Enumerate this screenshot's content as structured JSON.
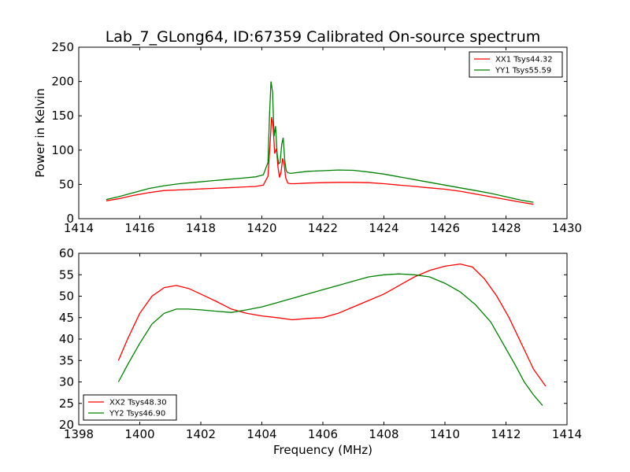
{
  "figure": {
    "title": "Lab_7_GLong64, ID:67359 Calibrated On-source spectrum"
  },
  "chart_data": [
    {
      "type": "line",
      "title": "Lab_7_GLong64, ID:67359 Calibrated On-source spectrum",
      "xlabel": "",
      "ylabel": "Power in Kelvin",
      "xlim": [
        1414,
        1430
      ],
      "ylim": [
        0,
        250
      ],
      "xticks": [
        1414,
        1416,
        1418,
        1420,
        1422,
        1424,
        1426,
        1428,
        1430
      ],
      "yticks": [
        0,
        50,
        100,
        150,
        200,
        250
      ],
      "grid": false,
      "legend_position": "top-right",
      "series": [
        {
          "name": "XX1 Tsys44.32",
          "color": "#ff0000",
          "x": [
            1414.9,
            1415.3,
            1415.8,
            1416.3,
            1416.8,
            1417.3,
            1417.8,
            1418.3,
            1418.8,
            1419.3,
            1419.8,
            1420.05,
            1420.2,
            1420.27,
            1420.32,
            1420.37,
            1420.42,
            1420.48,
            1420.53,
            1420.58,
            1420.63,
            1420.68,
            1420.73,
            1420.78,
            1420.85,
            1420.95,
            1421.1,
            1421.5,
            1422.0,
            1422.5,
            1423.0,
            1423.5,
            1424.0,
            1424.5,
            1425.0,
            1425.5,
            1426.0,
            1426.5,
            1427.0,
            1427.5,
            1428.0,
            1428.5,
            1428.9
          ],
          "y": [
            26,
            29,
            34,
            38,
            41,
            42,
            43,
            44,
            45,
            46,
            47,
            49,
            62,
            110,
            148,
            135,
            95,
            102,
            75,
            60,
            68,
            88,
            80,
            60,
            52,
            51,
            51,
            52,
            52.5,
            53,
            53,
            52.5,
            51,
            49,
            47,
            45,
            43,
            40,
            36,
            32,
            28,
            24,
            21
          ]
        },
        {
          "name": "YY1 Tsys55.59",
          "color": "#008000",
          "x": [
            1414.9,
            1415.3,
            1415.8,
            1416.3,
            1416.8,
            1417.3,
            1417.8,
            1418.3,
            1418.8,
            1419.3,
            1419.8,
            1420.05,
            1420.2,
            1420.25,
            1420.3,
            1420.35,
            1420.4,
            1420.45,
            1420.5,
            1420.55,
            1420.6,
            1420.65,
            1420.7,
            1420.75,
            1420.8,
            1420.85,
            1420.95,
            1421.1,
            1421.5,
            1422.0,
            1422.5,
            1423.0,
            1423.5,
            1424.0,
            1424.5,
            1425.0,
            1425.5,
            1426.0,
            1426.5,
            1427.0,
            1427.5,
            1428.0,
            1428.5,
            1428.9
          ],
          "y": [
            28,
            32,
            38,
            44,
            48,
            51,
            53,
            55,
            57,
            59,
            61,
            64,
            82,
            150,
            200,
            185,
            120,
            135,
            95,
            80,
            82,
            108,
            118,
            85,
            70,
            67,
            66,
            67,
            69,
            70,
            71,
            70.5,
            68,
            65,
            61,
            57,
            53,
            49,
            45,
            41,
            37,
            32,
            27,
            24
          ]
        }
      ]
    },
    {
      "type": "line",
      "title": "",
      "xlabel": "Frequency (MHz)",
      "ylabel": "",
      "xlim": [
        1398,
        1414
      ],
      "ylim": [
        20,
        60
      ],
      "xticks": [
        1398,
        1400,
        1402,
        1404,
        1406,
        1408,
        1410,
        1412,
        1414
      ],
      "yticks": [
        20,
        25,
        30,
        35,
        40,
        45,
        50,
        55,
        60
      ],
      "grid": false,
      "legend_position": "bottom-left",
      "series": [
        {
          "name": "XX2 Tsys48.30",
          "color": "#ff0000",
          "x": [
            1399.3,
            1399.6,
            1400.0,
            1400.4,
            1400.8,
            1401.2,
            1401.6,
            1402.0,
            1402.5,
            1403.0,
            1403.5,
            1404.0,
            1404.5,
            1405.0,
            1405.5,
            1406.0,
            1406.5,
            1407.0,
            1407.5,
            1408.0,
            1408.5,
            1409.0,
            1409.5,
            1410.0,
            1410.5,
            1410.9,
            1411.3,
            1411.7,
            1412.1,
            1412.5,
            1412.9,
            1413.3
          ],
          "y": [
            35,
            40,
            46,
            50,
            52,
            52.5,
            51.8,
            50.5,
            48.8,
            47,
            46,
            45.4,
            45,
            44.5,
            44.8,
            45,
            46,
            47.5,
            49,
            50.5,
            52.5,
            54.5,
            56,
            57,
            57.5,
            56.8,
            54,
            50,
            45,
            39,
            33,
            29
          ]
        },
        {
          "name": "YY2 Tsys46.90",
          "color": "#008000",
          "x": [
            1399.3,
            1399.6,
            1400.0,
            1400.4,
            1400.8,
            1401.2,
            1401.6,
            1402.0,
            1402.5,
            1403.0,
            1403.5,
            1404.0,
            1404.5,
            1405.0,
            1405.5,
            1406.0,
            1406.5,
            1407.0,
            1407.5,
            1408.0,
            1408.5,
            1409.0,
            1409.5,
            1410.0,
            1410.5,
            1411.0,
            1411.5,
            1411.9,
            1412.3,
            1412.6,
            1412.9,
            1413.2
          ],
          "y": [
            30,
            34,
            39,
            43.5,
            46,
            47,
            47,
            46.8,
            46.5,
            46.2,
            46.8,
            47.5,
            48.5,
            49.5,
            50.5,
            51.5,
            52.5,
            53.5,
            54.5,
            55,
            55.2,
            55,
            54.5,
            53,
            51,
            48,
            44,
            39,
            34,
            30,
            27,
            24.5
          ]
        }
      ]
    }
  ]
}
